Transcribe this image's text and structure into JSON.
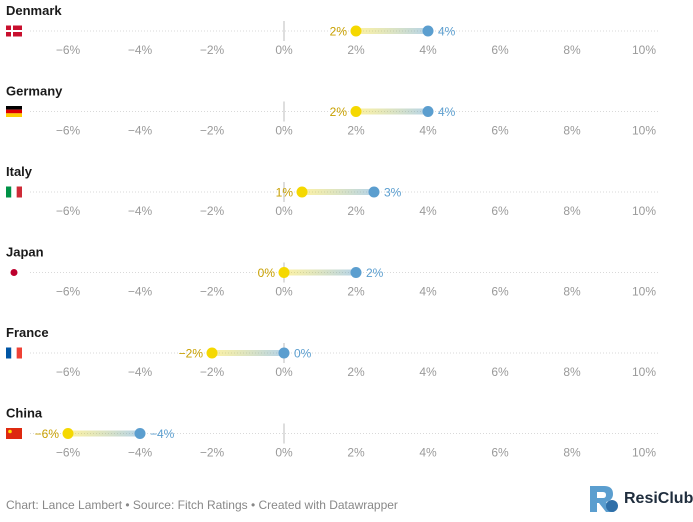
{
  "chart_data": {
    "type": "dot-range",
    "x_ticks": [
      -6,
      -4,
      -2,
      0,
      2,
      4,
      6,
      8,
      10
    ],
    "x_tick_labels": [
      "−6%",
      "−4%",
      "−2%",
      "0%",
      "2%",
      "4%",
      "6%",
      "8%",
      "10%"
    ],
    "xlim": [
      -7.2,
      10.6
    ],
    "colors": {
      "start": "#f5d800",
      "start_label": "#c8a000",
      "end": "#5b9ecf",
      "axis_text": "#9a9a9a",
      "grid": "#d9d9d9"
    },
    "rows": [
      {
        "country": "Denmark",
        "flag": "denmark-flag",
        "start": 2,
        "end": 4,
        "start_label": "2%",
        "end_label": "4%"
      },
      {
        "country": "Germany",
        "flag": "germany-flag",
        "start": 2,
        "end": 4,
        "start_label": "2%",
        "end_label": "4%"
      },
      {
        "country": "Italy",
        "flag": "italy-flag",
        "start": 0.5,
        "end": 2.5,
        "start_label": "1%",
        "end_label": "3%"
      },
      {
        "country": "Japan",
        "flag": "japan-flag",
        "start": 0,
        "end": 2,
        "start_label": "0%",
        "end_label": "2%"
      },
      {
        "country": "France",
        "flag": "france-flag",
        "start": -2,
        "end": 0,
        "start_label": "−2%",
        "end_label": "0%"
      },
      {
        "country": "China",
        "flag": "china-flag",
        "start": -6,
        "end": -4,
        "start_label": "−6%",
        "end_label": "−4%"
      }
    ]
  },
  "footer": {
    "credit": "Chart: Lance Lambert • Source: Fitch Ratings • Created with Datawrapper",
    "brand": "ResiClub"
  }
}
